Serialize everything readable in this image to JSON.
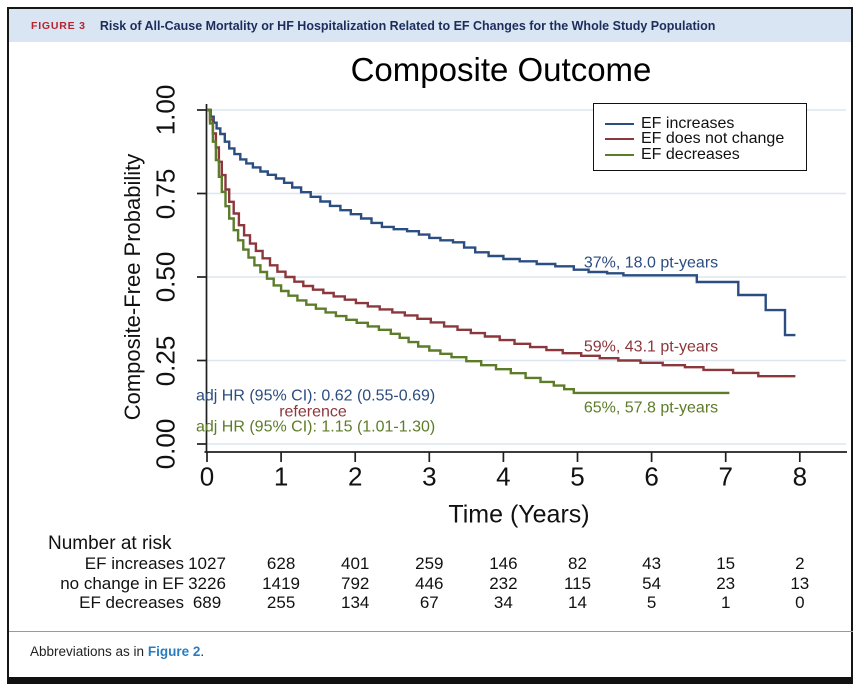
{
  "header": {
    "label": "FIGURE 3",
    "title": "Risk of All-Cause Mortality or HF Hospitalization Related to EF Changes for the Whole Study Population"
  },
  "colors": {
    "navy": "#2b4d80",
    "maroon": "#8b373c",
    "olive": "#5d7c29",
    "gridline": "#dce6f0",
    "axis": "#1f1f1f",
    "header_bg": "#d9e5f2",
    "header_label": "#b42431",
    "header_title": "#1c2d5c",
    "link": "#2a7cc0"
  },
  "chart_data": {
    "type": "line",
    "subtype": "kaplan-meier-step",
    "title": "Composite Outcome",
    "xlabel": "Time (Years)",
    "ylabel": "Composite-Free Probability",
    "xlim": [
      0,
      8
    ],
    "ylim": [
      0,
      1
    ],
    "x_ticks": [
      "0",
      "1",
      "2",
      "3",
      "4",
      "5",
      "6",
      "7",
      "8"
    ],
    "y_ticks": [
      "0.00",
      "0.25",
      "0.50",
      "0.75",
      "1.00"
    ],
    "grid": "horizontal",
    "legend_position": "top-right",
    "series": [
      {
        "name": "EF increases",
        "color_role": "navy",
        "points": [
          [
            0,
            1.0
          ],
          [
            0.05,
            0.98
          ],
          [
            0.09,
            0.962
          ],
          [
            0.13,
            0.945
          ],
          [
            0.18,
            0.928
          ],
          [
            0.24,
            0.905
          ],
          [
            0.3,
            0.885
          ],
          [
            0.37,
            0.868
          ],
          [
            0.45,
            0.852
          ],
          [
            0.53,
            0.84
          ],
          [
            0.62,
            0.828
          ],
          [
            0.72,
            0.816
          ],
          [
            0.82,
            0.806
          ],
          [
            0.93,
            0.795
          ],
          [
            1.04,
            0.782
          ],
          [
            1.15,
            0.768
          ],
          [
            1.27,
            0.754
          ],
          [
            1.4,
            0.74
          ],
          [
            1.53,
            0.726
          ],
          [
            1.66,
            0.713
          ],
          [
            1.8,
            0.7
          ],
          [
            1.94,
            0.688
          ],
          [
            2.08,
            0.675
          ],
          [
            2.22,
            0.662
          ],
          [
            2.36,
            0.65
          ],
          [
            2.52,
            0.643
          ],
          [
            2.7,
            0.637
          ],
          [
            2.86,
            0.627
          ],
          [
            3.0,
            0.617
          ],
          [
            3.15,
            0.61
          ],
          [
            3.32,
            0.604
          ],
          [
            3.47,
            0.588
          ],
          [
            3.62,
            0.574
          ],
          [
            3.8,
            0.563
          ],
          [
            4.0,
            0.554
          ],
          [
            4.22,
            0.547
          ],
          [
            4.45,
            0.539
          ],
          [
            4.7,
            0.532
          ],
          [
            4.95,
            0.522
          ],
          [
            5.15,
            0.515
          ],
          [
            5.4,
            0.511
          ],
          [
            5.62,
            0.505
          ],
          [
            6.61,
            0.485
          ],
          [
            7.17,
            0.446
          ],
          [
            7.54,
            0.401
          ],
          [
            7.8,
            0.326
          ],
          [
            7.94,
            0.326
          ]
        ]
      },
      {
        "name": "EF does not change",
        "color_role": "maroon",
        "points": [
          [
            0,
            1.0
          ],
          [
            0.04,
            0.972
          ],
          [
            0.08,
            0.93
          ],
          [
            0.12,
            0.888
          ],
          [
            0.16,
            0.845
          ],
          [
            0.2,
            0.805
          ],
          [
            0.25,
            0.762
          ],
          [
            0.3,
            0.725
          ],
          [
            0.36,
            0.69
          ],
          [
            0.43,
            0.655
          ],
          [
            0.5,
            0.625
          ],
          [
            0.58,
            0.6
          ],
          [
            0.66,
            0.578
          ],
          [
            0.75,
            0.556
          ],
          [
            0.85,
            0.535
          ],
          [
            0.95,
            0.516
          ],
          [
            1.06,
            0.5
          ],
          [
            1.18,
            0.486
          ],
          [
            1.3,
            0.473
          ],
          [
            1.43,
            0.462
          ],
          [
            1.57,
            0.452
          ],
          [
            1.71,
            0.442
          ],
          [
            1.86,
            0.432
          ],
          [
            2.01,
            0.422
          ],
          [
            2.17,
            0.412
          ],
          [
            2.33,
            0.403
          ],
          [
            2.5,
            0.394
          ],
          [
            2.67,
            0.385
          ],
          [
            2.84,
            0.375
          ],
          [
            3.02,
            0.364
          ],
          [
            3.2,
            0.352
          ],
          [
            3.38,
            0.342
          ],
          [
            3.56,
            0.332
          ],
          [
            3.75,
            0.322
          ],
          [
            3.95,
            0.311
          ],
          [
            4.15,
            0.3
          ],
          [
            4.36,
            0.29
          ],
          [
            4.58,
            0.281
          ],
          [
            4.8,
            0.272
          ],
          [
            5.05,
            0.264
          ],
          [
            5.3,
            0.257
          ],
          [
            5.55,
            0.25
          ],
          [
            5.85,
            0.243
          ],
          [
            6.15,
            0.236
          ],
          [
            6.45,
            0.23
          ],
          [
            6.7,
            0.222
          ],
          [
            7.1,
            0.213
          ],
          [
            7.44,
            0.203
          ],
          [
            7.94,
            0.203
          ]
        ]
      },
      {
        "name": "EF decreases",
        "color_role": "olive",
        "points": [
          [
            0,
            1.0
          ],
          [
            0.04,
            0.96
          ],
          [
            0.08,
            0.905
          ],
          [
            0.12,
            0.85
          ],
          [
            0.16,
            0.8
          ],
          [
            0.2,
            0.755
          ],
          [
            0.25,
            0.712
          ],
          [
            0.3,
            0.675
          ],
          [
            0.36,
            0.64
          ],
          [
            0.42,
            0.61
          ],
          [
            0.49,
            0.582
          ],
          [
            0.56,
            0.558
          ],
          [
            0.64,
            0.535
          ],
          [
            0.72,
            0.515
          ],
          [
            0.81,
            0.495
          ],
          [
            0.9,
            0.475
          ],
          [
            1.0,
            0.458
          ],
          [
            1.1,
            0.444
          ],
          [
            1.22,
            0.43
          ],
          [
            1.34,
            0.417
          ],
          [
            1.47,
            0.405
          ],
          [
            1.6,
            0.394
          ],
          [
            1.74,
            0.383
          ],
          [
            1.88,
            0.372
          ],
          [
            2.02,
            0.363
          ],
          [
            2.17,
            0.352
          ],
          [
            2.32,
            0.342
          ],
          [
            2.48,
            0.33
          ],
          [
            2.6,
            0.318
          ],
          [
            2.72,
            0.305
          ],
          [
            2.85,
            0.292
          ],
          [
            3.0,
            0.28
          ],
          [
            3.15,
            0.27
          ],
          [
            3.3,
            0.26
          ],
          [
            3.5,
            0.248
          ],
          [
            3.7,
            0.236
          ],
          [
            3.9,
            0.224
          ],
          [
            4.1,
            0.212
          ],
          [
            4.3,
            0.198
          ],
          [
            4.5,
            0.186
          ],
          [
            4.68,
            0.175
          ],
          [
            4.82,
            0.164
          ],
          [
            4.95,
            0.153
          ],
          [
            7.05,
            0.153
          ]
        ]
      }
    ],
    "annotations": [
      {
        "id": "navy-rate",
        "text": "37%, 18.0 pt-years",
        "color_role": "navy"
      },
      {
        "id": "maroon-rate",
        "text": "59%, 43.1 pt-years",
        "color_role": "maroon"
      },
      {
        "id": "olive-rate",
        "text": "65%, 57.8 pt-years",
        "color_role": "olive"
      },
      {
        "id": "navy-hr",
        "text": "adj HR (95% CI): 0.62 (0.55-0.69)",
        "color_role": "navy"
      },
      {
        "id": "maroon-hr",
        "text": "reference",
        "color_role": "maroon"
      },
      {
        "id": "olive-hr",
        "text": "adj HR (95% CI): 1.15 (1.01-1.30)",
        "color_role": "olive"
      }
    ]
  },
  "risk_table": {
    "title": "Number at risk",
    "time_points": [
      0,
      1,
      2,
      3,
      4,
      5,
      6,
      7,
      8
    ],
    "rows": [
      {
        "label": "EF increases",
        "values": [
          "1027",
          "628",
          "401",
          "259",
          "146",
          "82",
          "43",
          "15",
          "2"
        ]
      },
      {
        "label": "no change in EF",
        "values": [
          "3226",
          "1419",
          "792",
          "446",
          "232",
          "115",
          "54",
          "23",
          "13"
        ]
      },
      {
        "label": "EF decreases",
        "values": [
          "689",
          "255",
          "134",
          "67",
          "34",
          "14",
          "5",
          "1",
          "0"
        ]
      }
    ]
  },
  "footer": {
    "prefix": "Abbreviations as in ",
    "link": "Figure 2",
    "suffix": "."
  }
}
